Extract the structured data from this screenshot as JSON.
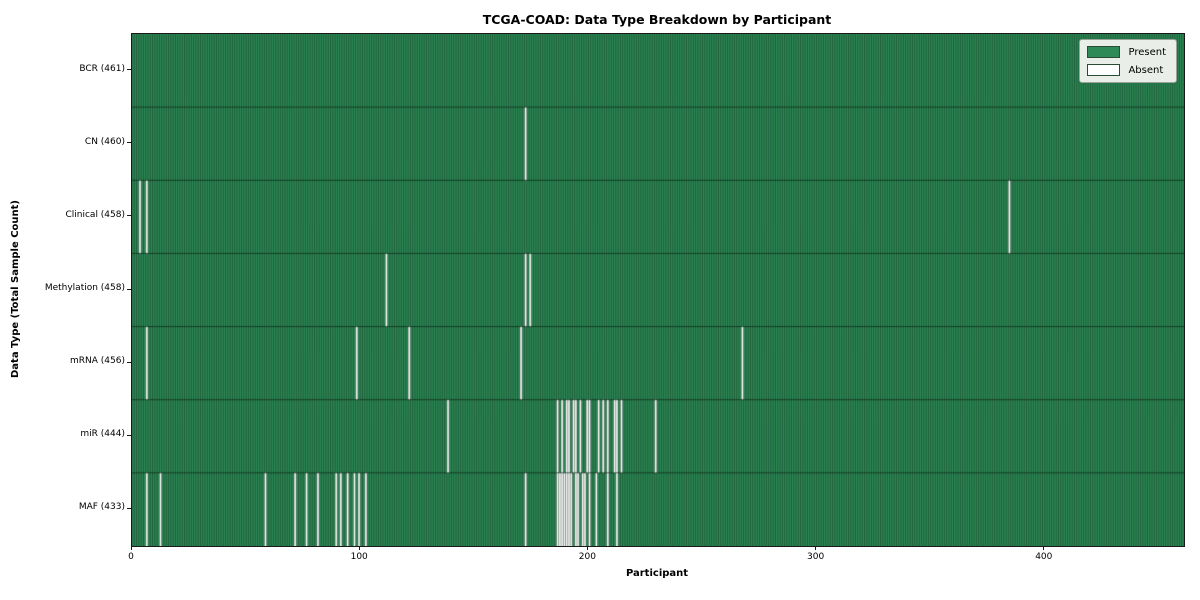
{
  "title": "TCGA-COAD: Data Type Breakdown by Participant",
  "colors": {
    "present": "#2e8b57",
    "absent": "#ffffff",
    "grid_edge": "rgba(8,24,14,0.6)",
    "legend_bg": "#e9eee9"
  },
  "chart_data": {
    "type": "heatmap",
    "title": "TCGA-COAD: Data Type Breakdown by Participant",
    "xlabel": "Participant",
    "ylabel": "Data Type (Total Sample Count)",
    "x_range": [
      0,
      461
    ],
    "x_ticks": [
      0,
      100,
      200,
      300,
      400
    ],
    "n_participants": 461,
    "grid": "per-participant vertical cell edges, dark",
    "legend_position": "upper right",
    "legend": [
      {
        "label": "Present",
        "color": "#2e8b57"
      },
      {
        "label": "Absent",
        "color": "#ffffff"
      }
    ],
    "rows": [
      {
        "label": "BCR (461)",
        "data_type": "BCR",
        "present_count": 461,
        "absent_participants": []
      },
      {
        "label": "CN (460)",
        "data_type": "CN",
        "present_count": 460,
        "absent_participants": [
          172
        ]
      },
      {
        "label": "Clinical (458)",
        "data_type": "Clinical",
        "present_count": 458,
        "absent_participants": [
          3,
          6,
          384
        ]
      },
      {
        "label": "Methylation (458)",
        "data_type": "Methylation",
        "present_count": 458,
        "absent_participants": [
          111,
          172,
          174
        ]
      },
      {
        "label": "mRNA (456)",
        "data_type": "mRNA",
        "present_count": 456,
        "absent_participants": [
          6,
          98,
          121,
          170,
          267
        ]
      },
      {
        "label": "miR (444)",
        "data_type": "miR",
        "present_count": 444,
        "absent_participants": [
          138,
          186,
          188,
          190,
          191,
          193,
          194,
          196,
          199,
          200,
          204,
          206,
          208,
          211,
          212,
          214,
          229
        ]
      },
      {
        "label": "MAF (433)",
        "data_type": "MAF",
        "present_count": 433,
        "absent_participants": [
          6,
          12,
          58,
          71,
          76,
          81,
          89,
          91,
          94,
          97,
          99,
          102,
          172,
          186,
          187,
          188,
          189,
          190,
          191,
          192,
          194,
          195,
          197,
          198,
          200,
          203,
          208,
          212
        ]
      }
    ]
  }
}
